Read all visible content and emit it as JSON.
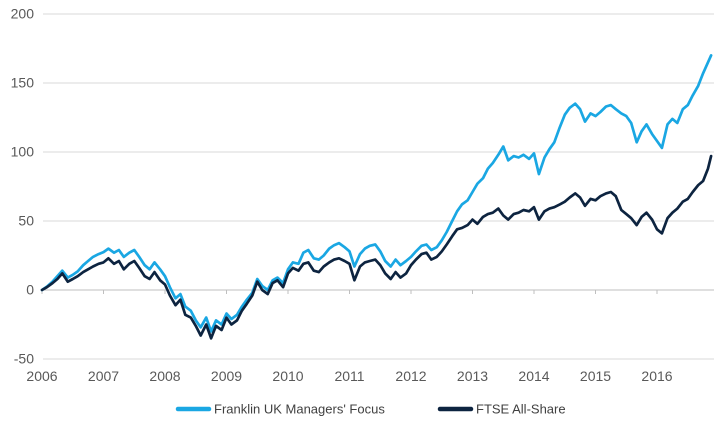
{
  "chart_data": {
    "type": "line",
    "title": "",
    "xlabel": "",
    "ylabel": "",
    "x_axis": {
      "ticks": [
        2006,
        2007,
        2008,
        2009,
        2010,
        2011,
        2012,
        2013,
        2014,
        2015,
        2016
      ],
      "range": [
        2006,
        2016.93
      ]
    },
    "y_axis": {
      "ticks": [
        -50,
        0,
        50,
        100,
        150,
        200
      ],
      "range": [
        -50,
        200
      ]
    },
    "grid": "horizontal",
    "style": {
      "gridline_color": "#d9d9d9",
      "axis_line_color": "#bfbfbf",
      "axis_label_color": "#595959",
      "legend_text_color": "#404040",
      "background": "#ffffff"
    },
    "legend": {
      "position": "bottom-center",
      "items": [
        {
          "label": "Franklin UK Managers' Focus",
          "color": "#1aa7e3"
        },
        {
          "label": "FTSE All-Share",
          "color": "#0d2440"
        }
      ]
    },
    "series": [
      {
        "name": "Franklin UK Managers' Focus",
        "color": "#1aa7e3",
        "points": [
          [
            2006.0,
            0
          ],
          [
            2006.08,
            2.5
          ],
          [
            2006.17,
            6
          ],
          [
            2006.25,
            10
          ],
          [
            2006.33,
            14
          ],
          [
            2006.42,
            9
          ],
          [
            2006.5,
            11
          ],
          [
            2006.58,
            13.5
          ],
          [
            2006.67,
            18
          ],
          [
            2006.75,
            21
          ],
          [
            2006.83,
            24
          ],
          [
            2006.92,
            26
          ],
          [
            2007.0,
            27.5
          ],
          [
            2007.08,
            30
          ],
          [
            2007.17,
            27
          ],
          [
            2007.25,
            29
          ],
          [
            2007.33,
            24
          ],
          [
            2007.42,
            27
          ],
          [
            2007.5,
            29
          ],
          [
            2007.58,
            24
          ],
          [
            2007.67,
            18
          ],
          [
            2007.75,
            15
          ],
          [
            2007.83,
            20
          ],
          [
            2007.92,
            15
          ],
          [
            2008.0,
            10
          ],
          [
            2008.08,
            2
          ],
          [
            2008.17,
            -6
          ],
          [
            2008.25,
            -3
          ],
          [
            2008.33,
            -12
          ],
          [
            2008.42,
            -15
          ],
          [
            2008.5,
            -22
          ],
          [
            2008.58,
            -27
          ],
          [
            2008.67,
            -20
          ],
          [
            2008.75,
            -30
          ],
          [
            2008.83,
            -22
          ],
          [
            2008.92,
            -25
          ],
          [
            2009.0,
            -17
          ],
          [
            2009.08,
            -21
          ],
          [
            2009.17,
            -18
          ],
          [
            2009.25,
            -12
          ],
          [
            2009.33,
            -7
          ],
          [
            2009.42,
            -2
          ],
          [
            2009.5,
            8
          ],
          [
            2009.58,
            3
          ],
          [
            2009.67,
            0
          ],
          [
            2009.75,
            7
          ],
          [
            2009.83,
            9
          ],
          [
            2009.92,
            5
          ],
          [
            2010.0,
            15
          ],
          [
            2010.08,
            20
          ],
          [
            2010.17,
            19
          ],
          [
            2010.25,
            27
          ],
          [
            2010.33,
            29
          ],
          [
            2010.42,
            23
          ],
          [
            2010.5,
            22
          ],
          [
            2010.58,
            25
          ],
          [
            2010.67,
            30
          ],
          [
            2010.75,
            32.5
          ],
          [
            2010.83,
            34
          ],
          [
            2010.92,
            31
          ],
          [
            2011.0,
            28
          ],
          [
            2011.08,
            17
          ],
          [
            2011.17,
            26
          ],
          [
            2011.25,
            30
          ],
          [
            2011.33,
            32
          ],
          [
            2011.42,
            33
          ],
          [
            2011.5,
            28
          ],
          [
            2011.58,
            21
          ],
          [
            2011.67,
            17
          ],
          [
            2011.75,
            22
          ],
          [
            2011.83,
            18
          ],
          [
            2011.92,
            21
          ],
          [
            2012.0,
            24
          ],
          [
            2012.08,
            28
          ],
          [
            2012.17,
            32
          ],
          [
            2012.25,
            33
          ],
          [
            2012.33,
            29
          ],
          [
            2012.42,
            31
          ],
          [
            2012.5,
            36
          ],
          [
            2012.58,
            42
          ],
          [
            2012.67,
            50
          ],
          [
            2012.75,
            57
          ],
          [
            2012.83,
            62
          ],
          [
            2012.92,
            65
          ],
          [
            2013.0,
            71
          ],
          [
            2013.08,
            77
          ],
          [
            2013.17,
            81
          ],
          [
            2013.25,
            88
          ],
          [
            2013.33,
            92
          ],
          [
            2013.42,
            98
          ],
          [
            2013.5,
            104
          ],
          [
            2013.58,
            94
          ],
          [
            2013.67,
            97
          ],
          [
            2013.75,
            96
          ],
          [
            2013.83,
            98
          ],
          [
            2013.92,
            95
          ],
          [
            2014.0,
            99
          ],
          [
            2014.08,
            84
          ],
          [
            2014.17,
            96
          ],
          [
            2014.25,
            102
          ],
          [
            2014.33,
            107
          ],
          [
            2014.42,
            118
          ],
          [
            2014.5,
            127
          ],
          [
            2014.58,
            132
          ],
          [
            2014.67,
            135
          ],
          [
            2014.75,
            131
          ],
          [
            2014.83,
            122
          ],
          [
            2014.92,
            128
          ],
          [
            2015.0,
            126
          ],
          [
            2015.08,
            129
          ],
          [
            2015.17,
            133
          ],
          [
            2015.25,
            134
          ],
          [
            2015.33,
            131
          ],
          [
            2015.42,
            128
          ],
          [
            2015.5,
            126
          ],
          [
            2015.58,
            121
          ],
          [
            2015.67,
            107
          ],
          [
            2015.75,
            115
          ],
          [
            2015.83,
            120
          ],
          [
            2015.92,
            113
          ],
          [
            2016.0,
            108
          ],
          [
            2016.08,
            103
          ],
          [
            2016.17,
            120
          ],
          [
            2016.25,
            124
          ],
          [
            2016.33,
            121
          ],
          [
            2016.42,
            131
          ],
          [
            2016.5,
            134
          ],
          [
            2016.58,
            141
          ],
          [
            2016.67,
            148
          ],
          [
            2016.75,
            157
          ],
          [
            2016.83,
            165
          ],
          [
            2016.88,
            170
          ]
        ]
      },
      {
        "name": "FTSE All-Share",
        "color": "#0d2440",
        "points": [
          [
            2006.0,
            0
          ],
          [
            2006.08,
            2
          ],
          [
            2006.17,
            5
          ],
          [
            2006.25,
            8
          ],
          [
            2006.33,
            12
          ],
          [
            2006.42,
            6
          ],
          [
            2006.5,
            8
          ],
          [
            2006.58,
            10
          ],
          [
            2006.67,
            13
          ],
          [
            2006.75,
            15
          ],
          [
            2006.83,
            17
          ],
          [
            2006.92,
            19
          ],
          [
            2007.0,
            20
          ],
          [
            2007.08,
            23
          ],
          [
            2007.17,
            19
          ],
          [
            2007.25,
            21
          ],
          [
            2007.33,
            15
          ],
          [
            2007.42,
            19
          ],
          [
            2007.5,
            21
          ],
          [
            2007.58,
            16
          ],
          [
            2007.67,
            10
          ],
          [
            2007.75,
            8
          ],
          [
            2007.83,
            13
          ],
          [
            2007.92,
            7
          ],
          [
            2008.0,
            4
          ],
          [
            2008.08,
            -4
          ],
          [
            2008.17,
            -11
          ],
          [
            2008.25,
            -7
          ],
          [
            2008.33,
            -18
          ],
          [
            2008.42,
            -20
          ],
          [
            2008.5,
            -26
          ],
          [
            2008.58,
            -33
          ],
          [
            2008.67,
            -25
          ],
          [
            2008.75,
            -35
          ],
          [
            2008.83,
            -26
          ],
          [
            2008.92,
            -29
          ],
          [
            2009.0,
            -20
          ],
          [
            2009.08,
            -25
          ],
          [
            2009.17,
            -22
          ],
          [
            2009.25,
            -15
          ],
          [
            2009.33,
            -10
          ],
          [
            2009.42,
            -4
          ],
          [
            2009.5,
            6
          ],
          [
            2009.58,
            0
          ],
          [
            2009.67,
            -3
          ],
          [
            2009.75,
            5
          ],
          [
            2009.83,
            7
          ],
          [
            2009.92,
            2
          ],
          [
            2010.0,
            12
          ],
          [
            2010.08,
            16
          ],
          [
            2010.17,
            14
          ],
          [
            2010.25,
            19
          ],
          [
            2010.33,
            20
          ],
          [
            2010.42,
            14
          ],
          [
            2010.5,
            13
          ],
          [
            2010.58,
            17
          ],
          [
            2010.67,
            20
          ],
          [
            2010.75,
            22
          ],
          [
            2010.83,
            23
          ],
          [
            2010.92,
            21
          ],
          [
            2011.0,
            19
          ],
          [
            2011.08,
            7
          ],
          [
            2011.17,
            17
          ],
          [
            2011.25,
            20
          ],
          [
            2011.33,
            21
          ],
          [
            2011.42,
            22
          ],
          [
            2011.5,
            18
          ],
          [
            2011.58,
            12
          ],
          [
            2011.67,
            8
          ],
          [
            2011.75,
            13
          ],
          [
            2011.83,
            9
          ],
          [
            2011.92,
            12
          ],
          [
            2012.0,
            18
          ],
          [
            2012.08,
            22
          ],
          [
            2012.17,
            26
          ],
          [
            2012.25,
            27
          ],
          [
            2012.33,
            22
          ],
          [
            2012.42,
            24
          ],
          [
            2012.5,
            28
          ],
          [
            2012.58,
            33
          ],
          [
            2012.67,
            39
          ],
          [
            2012.75,
            44
          ],
          [
            2012.83,
            45
          ],
          [
            2012.92,
            47
          ],
          [
            2013.0,
            51
          ],
          [
            2013.08,
            48
          ],
          [
            2013.17,
            53
          ],
          [
            2013.25,
            55
          ],
          [
            2013.33,
            56
          ],
          [
            2013.42,
            59
          ],
          [
            2013.5,
            54
          ],
          [
            2013.58,
            51
          ],
          [
            2013.67,
            55
          ],
          [
            2013.75,
            56
          ],
          [
            2013.83,
            58
          ],
          [
            2013.92,
            57
          ],
          [
            2014.0,
            60
          ],
          [
            2014.08,
            51
          ],
          [
            2014.17,
            57
          ],
          [
            2014.25,
            59
          ],
          [
            2014.33,
            60
          ],
          [
            2014.42,
            62
          ],
          [
            2014.5,
            64
          ],
          [
            2014.58,
            67
          ],
          [
            2014.67,
            70
          ],
          [
            2014.75,
            67
          ],
          [
            2014.83,
            61
          ],
          [
            2014.92,
            66
          ],
          [
            2015.0,
            65
          ],
          [
            2015.08,
            68
          ],
          [
            2015.17,
            70
          ],
          [
            2015.25,
            71
          ],
          [
            2015.33,
            68
          ],
          [
            2015.42,
            58
          ],
          [
            2015.5,
            55
          ],
          [
            2015.58,
            52
          ],
          [
            2015.67,
            47
          ],
          [
            2015.75,
            53
          ],
          [
            2015.83,
            56
          ],
          [
            2015.92,
            51
          ],
          [
            2016.0,
            44
          ],
          [
            2016.08,
            41
          ],
          [
            2016.17,
            52
          ],
          [
            2016.25,
            56
          ],
          [
            2016.33,
            59
          ],
          [
            2016.42,
            64
          ],
          [
            2016.5,
            66
          ],
          [
            2016.58,
            71
          ],
          [
            2016.67,
            76
          ],
          [
            2016.75,
            79
          ],
          [
            2016.83,
            88
          ],
          [
            2016.88,
            97
          ]
        ]
      }
    ]
  }
}
